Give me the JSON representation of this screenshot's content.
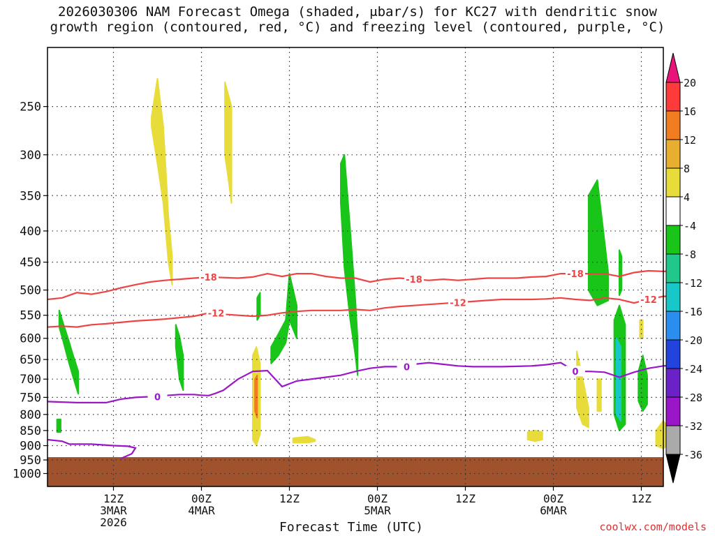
{
  "title_lines": [
    "2026030306 NAM Forecast Omega (shaded, μbar/s) for KC27 with dendritic snow",
    "growth region (contoured, red, °C) and freezing level (contoured, purple, °C)"
  ],
  "credit": "coolwx.com/models",
  "chart_data": {
    "type": "contour",
    "xlabel": "Forecast Time (UTC)",
    "y_scale": "log-pressure",
    "y_ticks": [
      250,
      300,
      350,
      400,
      450,
      500,
      550,
      600,
      650,
      700,
      750,
      800,
      850,
      900,
      950,
      1000
    ],
    "x_ticks": [
      {
        "h": 9,
        "lines": [
          "12Z",
          "3MAR",
          "2026"
        ]
      },
      {
        "h": 21,
        "lines": [
          "00Z",
          "4MAR"
        ]
      },
      {
        "h": 33,
        "lines": [
          "12Z"
        ]
      },
      {
        "h": 45,
        "lines": [
          "00Z",
          "5MAR"
        ]
      },
      {
        "h": 57,
        "lines": [
          "12Z"
        ]
      },
      {
        "h": 69,
        "lines": [
          "00Z",
          "6MAR"
        ]
      },
      {
        "h": 81,
        "lines": [
          "12Z"
        ]
      }
    ],
    "grid": true,
    "colorbar": {
      "labels": [
        20,
        16,
        12,
        8,
        4,
        -4,
        -8,
        -12,
        -16,
        -20,
        -24,
        -28,
        -32,
        -36
      ],
      "colors": [
        "#ff3a3a",
        "#f07d20",
        "#e8ae30",
        "#e8dc3a",
        "#ffffff",
        "#19c519",
        "#22c88a",
        "#18c8c8",
        "#2a8ef0",
        "#2244dd",
        "#6a22c8",
        "#9a16c8",
        "#aaaaaa"
      ],
      "top_arrow_color": "#e8147a",
      "bottom_arrow_color": "#000000"
    },
    "ground_color": "#a0522d",
    "contours": [
      {
        "label": "-18",
        "color": "#ee4444",
        "points": [
          [
            0,
            518
          ],
          [
            2,
            515
          ],
          [
            4,
            505
          ],
          [
            6,
            508
          ],
          [
            8,
            503
          ],
          [
            10,
            496
          ],
          [
            12,
            490
          ],
          [
            14,
            485
          ],
          [
            16,
            482
          ],
          [
            18,
            480
          ],
          [
            20,
            478
          ],
          [
            22,
            476
          ],
          [
            24,
            477
          ],
          [
            26,
            478
          ],
          [
            28,
            476
          ],
          [
            30,
            470
          ],
          [
            32,
            475
          ],
          [
            34,
            470
          ],
          [
            36,
            470
          ],
          [
            38,
            475
          ],
          [
            40,
            478
          ],
          [
            42,
            478
          ],
          [
            44,
            485
          ],
          [
            46,
            480
          ],
          [
            48,
            478
          ],
          [
            50,
            480
          ],
          [
            52,
            482
          ],
          [
            54,
            480
          ],
          [
            56,
            482
          ],
          [
            58,
            480
          ],
          [
            60,
            478
          ],
          [
            62,
            478
          ],
          [
            64,
            478
          ],
          [
            66,
            476
          ],
          [
            68,
            475
          ],
          [
            70,
            470
          ],
          [
            72,
            470
          ],
          [
            74,
            470
          ],
          [
            76,
            470
          ],
          [
            78,
            475
          ],
          [
            80,
            468
          ],
          [
            82,
            465
          ],
          [
            84,
            466
          ],
          [
            86,
            465
          ]
        ],
        "label_at": [
          22,
          50,
          72
        ]
      },
      {
        "label": "-12",
        "color": "#ee4444",
        "points": [
          [
            0,
            575
          ],
          [
            2,
            573
          ],
          [
            4,
            575
          ],
          [
            6,
            570
          ],
          [
            8,
            568
          ],
          [
            10,
            565
          ],
          [
            12,
            562
          ],
          [
            14,
            560
          ],
          [
            16,
            558
          ],
          [
            18,
            555
          ],
          [
            20,
            552
          ],
          [
            22,
            545
          ],
          [
            24,
            548
          ],
          [
            26,
            550
          ],
          [
            28,
            552
          ],
          [
            30,
            550
          ],
          [
            32,
            545
          ],
          [
            34,
            542
          ],
          [
            36,
            540
          ],
          [
            38,
            540
          ],
          [
            40,
            540
          ],
          [
            42,
            538
          ],
          [
            44,
            540
          ],
          [
            46,
            535
          ],
          [
            48,
            532
          ],
          [
            50,
            530
          ],
          [
            52,
            528
          ],
          [
            54,
            526
          ],
          [
            56,
            524
          ],
          [
            58,
            522
          ],
          [
            60,
            520
          ],
          [
            62,
            518
          ],
          [
            64,
            518
          ],
          [
            66,
            518
          ],
          [
            68,
            517
          ],
          [
            70,
            515
          ],
          [
            72,
            518
          ],
          [
            74,
            520
          ],
          [
            76,
            515
          ],
          [
            78,
            518
          ],
          [
            80,
            525
          ],
          [
            82,
            518
          ],
          [
            84,
            512
          ],
          [
            86,
            512
          ]
        ],
        "label_at": [
          23,
          56,
          82
        ]
      },
      {
        "label": "0",
        "color": "#9a16c8",
        "points": [
          [
            0,
            762
          ],
          [
            4,
            765
          ],
          [
            8,
            765
          ],
          [
            10,
            755
          ],
          [
            12,
            750
          ],
          [
            14,
            748
          ],
          [
            16,
            745
          ],
          [
            18,
            742
          ],
          [
            20,
            742
          ],
          [
            21,
            744
          ],
          [
            22,
            745
          ],
          [
            23,
            738
          ],
          [
            24,
            730
          ],
          [
            26,
            700
          ],
          [
            28,
            680
          ],
          [
            30,
            678
          ],
          [
            32,
            720
          ],
          [
            34,
            705
          ],
          [
            36,
            700
          ],
          [
            38,
            695
          ],
          [
            40,
            690
          ],
          [
            42,
            680
          ],
          [
            44,
            672
          ],
          [
            46,
            668
          ],
          [
            48,
            668
          ],
          [
            50,
            662
          ],
          [
            52,
            658
          ],
          [
            54,
            662
          ],
          [
            56,
            666
          ],
          [
            58,
            668
          ],
          [
            60,
            668
          ],
          [
            62,
            668
          ],
          [
            64,
            667
          ],
          [
            66,
            666
          ],
          [
            68,
            663
          ],
          [
            70,
            658
          ],
          [
            72,
            680
          ],
          [
            74,
            680
          ],
          [
            76,
            682
          ],
          [
            78,
            695
          ],
          [
            80,
            682
          ],
          [
            82,
            672
          ],
          [
            84,
            666
          ],
          [
            86,
            664
          ]
        ],
        "label_at": [
          15,
          49,
          72
        ]
      },
      {
        "label": "",
        "color": "#9a16c8",
        "points": [
          [
            0,
            880
          ],
          [
            2,
            885
          ],
          [
            3,
            895
          ],
          [
            6,
            895
          ],
          [
            9,
            900
          ],
          [
            11,
            902
          ],
          [
            12,
            908
          ],
          [
            11.5,
            928
          ],
          [
            10,
            945
          ]
        ],
        "label_at": []
      }
    ],
    "shaded_regions": [
      {
        "value": -6,
        "hours": [
          1.6,
          2.2,
          2.8,
          3.5,
          4.2
        ],
        "p_top": [
          540,
          570,
          600,
          640,
          680
        ],
        "p_bot": [
          575,
          610,
          650,
          695,
          740
        ]
      },
      {
        "value": -6,
        "hours": [
          1.3,
          1.8
        ],
        "p_top": [
          815,
          815
        ],
        "p_bot": [
          855,
          855
        ]
      },
      {
        "value": 6,
        "hours": [
          14.2,
          15.0,
          15.8,
          16.5,
          17.0
        ],
        "p_top": [
          260,
          225,
          270,
          380,
          440
        ],
        "p_bot": [
          270,
          310,
          360,
          450,
          490
        ]
      },
      {
        "value": -6,
        "hours": [
          17.5,
          18.0,
          18.5
        ],
        "p_top": [
          570,
          595,
          640
        ],
        "p_bot": [
          620,
          700,
          730
        ]
      },
      {
        "value": 6,
        "hours": [
          24.2,
          24.7,
          25.1
        ],
        "p_top": [
          228,
          240,
          250
        ],
        "p_bot": [
          300,
          330,
          360
        ]
      },
      {
        "value": -6,
        "hours": [
          28.6,
          29.0
        ],
        "p_top": [
          515,
          505
        ],
        "p_bot": [
          560,
          550
        ]
      },
      {
        "value": -6,
        "hours": [
          30.5,
          31.5,
          32.5,
          33.0,
          34.0
        ],
        "p_top": [
          620,
          590,
          560,
          470,
          530
        ],
        "p_bot": [
          660,
          640,
          610,
          560,
          600
        ]
      },
      {
        "value": 6,
        "hours": [
          28.0,
          28.5,
          29.0
        ],
        "p_top": [
          640,
          620,
          660
        ],
        "p_bot": [
          880,
          900,
          860
        ]
      },
      {
        "value": 14,
        "hours": [
          28.3,
          28.6
        ],
        "p_top": [
          700,
          690
        ],
        "p_bot": [
          790,
          810
        ]
      },
      {
        "value": 6,
        "hours": [
          33.5,
          35.5,
          36.5
        ],
        "p_top": [
          875,
          870,
          880
        ],
        "p_bot": [
          890,
          890,
          885
        ]
      },
      {
        "value": -6,
        "hours": [
          40.0,
          40.5,
          41.3,
          42.0,
          42.3
        ],
        "p_top": [
          310,
          300,
          400,
          520,
          600
        ],
        "p_bot": [
          360,
          460,
          560,
          640,
          690
        ]
      },
      {
        "value": 6,
        "hours": [
          65.5,
          66.5,
          67.5
        ],
        "p_top": [
          855,
          850,
          855
        ],
        "p_bot": [
          880,
          885,
          880
        ]
      },
      {
        "value": 6,
        "hours": [
          72.2,
          73.0,
          73.8
        ],
        "p_top": [
          630,
          700,
          780
        ],
        "p_bot": [
          780,
          830,
          840
        ]
      },
      {
        "value": 6,
        "hours": [
          75.0,
          75.5
        ],
        "p_top": [
          700,
          700
        ],
        "p_bot": [
          790,
          790
        ]
      },
      {
        "value": -6,
        "hours": [
          73.8,
          75.0,
          76.5
        ],
        "p_top": [
          350,
          330,
          470
        ],
        "p_bot": [
          500,
          530,
          520
        ]
      },
      {
        "value": -6,
        "hours": [
          78.0,
          78.3
        ],
        "p_top": [
          430,
          440
        ],
        "p_bot": [
          510,
          500
        ]
      },
      {
        "value": -6,
        "hours": [
          77.3,
          78.0,
          78.8
        ],
        "p_top": [
          560,
          530,
          570
        ],
        "p_bot": [
          800,
          850,
          830
        ]
      },
      {
        "value": -14,
        "hours": [
          77.6,
          78.2
        ],
        "p_top": [
          600,
          620
        ],
        "p_bot": [
          800,
          820
        ]
      },
      {
        "value": -6,
        "hours": [
          80.6,
          81.2,
          81.8
        ],
        "p_top": [
          680,
          640,
          690
        ],
        "p_bot": [
          760,
          790,
          770
        ]
      },
      {
        "value": 6,
        "hours": [
          83.0,
          84.0,
          85.0
        ],
        "p_top": [
          850,
          820,
          850
        ],
        "p_bot": [
          900,
          910,
          890
        ]
      },
      {
        "value": 6,
        "hours": [
          80.8,
          81.2
        ],
        "p_top": [
          560,
          560
        ],
        "p_bot": [
          600,
          600
        ]
      }
    ]
  }
}
